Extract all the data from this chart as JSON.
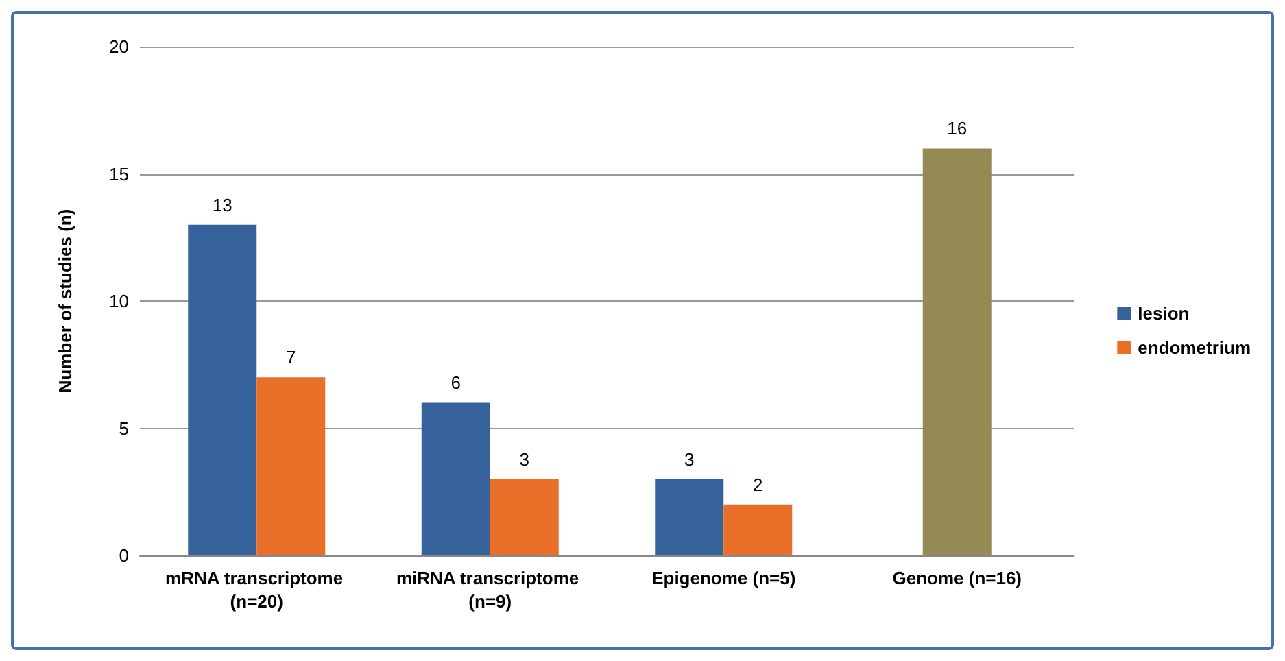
{
  "chart_data": {
    "type": "bar",
    "ylabel": "Number of studies (n)",
    "categories": [
      "mRNA transcriptome (n=20)",
      "miRNA transcriptome (n=9)",
      "Epigenome (n=5)",
      "Genome (n=16)"
    ],
    "series": [
      {
        "name": "lesion",
        "color": "#35629a",
        "values": [
          13,
          6,
          3,
          null
        ]
      },
      {
        "name": "endometrium",
        "color": "#e96e27",
        "values": [
          7,
          3,
          2,
          null
        ]
      },
      {
        "color": "#948a54",
        "values": [
          null,
          null,
          null,
          16
        ]
      }
    ],
    "ylim": [
      0,
      20
    ],
    "yticks": [
      0,
      5,
      10,
      15,
      20
    ],
    "grid": "y",
    "legend": "right",
    "data_labels": true
  }
}
